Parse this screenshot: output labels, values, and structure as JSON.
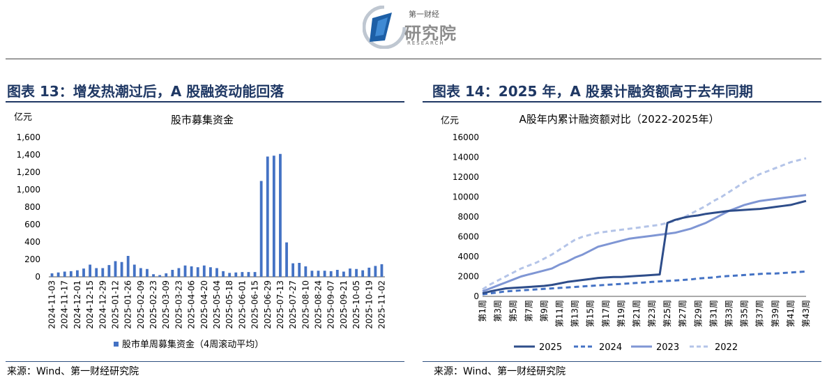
{
  "logo": {
    "line1": "第一财经",
    "line2": "研究院",
    "line3": "RESEARCH"
  },
  "left": {
    "figure_title": "图表 13：增发热潮过后，A 股融资动能回落",
    "source": "来源：Wind、第一财经研究院"
  },
  "right": {
    "figure_title": "图表 14：2025 年，A 股累计融资额高于去年同期",
    "source": "来源：Wind、第一财经研究院"
  },
  "chart_data": [
    {
      "type": "bar",
      "title": "股市募集资金",
      "unit_label": "亿元",
      "ylim": [
        0,
        1600
      ],
      "yticks": [
        "0",
        "200",
        "400",
        "600",
        "800",
        "1,000",
        "1,200",
        "1,400",
        "1,600"
      ],
      "ytick_values": [
        0,
        200,
        400,
        600,
        800,
        1000,
        1200,
        1400,
        1600
      ],
      "color": "#4472c4",
      "categories": [
        "2024-11-03",
        "2024-11-10",
        "2024-11-17",
        "2024-11-24",
        "2024-12-01",
        "2024-12-08",
        "2024-12-15",
        "2024-12-22",
        "2024-12-29",
        "2025-01-05",
        "2025-01-12",
        "2025-01-19",
        "2025-01-26",
        "2025-02-02",
        "2025-02-09",
        "2025-02-16",
        "2025-02-23",
        "2025-03-02",
        "2025-03-09",
        "2025-03-16",
        "2025-03-23",
        "2025-03-30",
        "2025-04-06",
        "2025-04-13",
        "2025-04-20",
        "2025-04-27",
        "2025-05-04",
        "2025-05-11",
        "2025-05-18",
        "2025-05-25",
        "2025-06-01",
        "2025-06-08",
        "2025-06-15",
        "2025-06-22",
        "2025-06-29",
        "2025-07-06",
        "2025-07-13",
        "2025-07-20",
        "2025-07-27",
        "2025-08-03",
        "2025-08-10",
        "2025-08-17",
        "2025-08-24",
        "2025-08-31",
        "2025-09-07",
        "2025-09-14",
        "2025-09-21",
        "2025-09-28",
        "2025-10-05",
        "2025-10-12",
        "2025-10-19",
        "2025-10-26",
        "2025-11-02"
      ],
      "xtick_labels": [
        "2024-11-03",
        "2024-11-17",
        "2024-12-01",
        "2024-12-15",
        "2024-12-29",
        "2025-01-12",
        "2025-01-26",
        "2025-02-09",
        "2025-02-23",
        "2025-03-09",
        "2025-03-23",
        "2025-04-06",
        "2025-04-20",
        "2025-05-04",
        "2025-05-18",
        "2025-06-01",
        "2025-06-15",
        "2025-06-29",
        "2025-07-13",
        "2025-07-27",
        "2025-08-10",
        "2025-08-24",
        "2025-09-07",
        "2025-09-21",
        "2025-10-05",
        "2025-10-19",
        "2025-11-02"
      ],
      "values": [
        40,
        50,
        60,
        65,
        75,
        95,
        140,
        100,
        100,
        135,
        180,
        170,
        240,
        140,
        100,
        90,
        30,
        20,
        40,
        80,
        100,
        130,
        120,
        110,
        130,
        110,
        100,
        65,
        45,
        50,
        55,
        55,
        55,
        1100,
        1380,
        1390,
        1410,
        395,
        155,
        160,
        120,
        70,
        70,
        70,
        65,
        80,
        60,
        95,
        90,
        75,
        105,
        125,
        145
      ],
      "legend": "股市单周募集资金（4周滚动平均）"
    },
    {
      "type": "line",
      "title": "A股年内累计融资额对比（2022-2025年）",
      "unit_label": "亿元",
      "ylim": [
        0,
        16000
      ],
      "yticks": [
        "0",
        "2000",
        "4000",
        "6000",
        "8000",
        "10000",
        "12000",
        "14000",
        "16000"
      ],
      "ytick_values": [
        0,
        2000,
        4000,
        6000,
        8000,
        10000,
        12000,
        14000,
        16000
      ],
      "xtick_labels": [
        "第1周",
        "第3周",
        "第5周",
        "第7周",
        "第9周",
        "第11周",
        "第13周",
        "第15周",
        "第17周",
        "第19周",
        "第21周",
        "第23周",
        "第25周",
        "第27周",
        "第29周",
        "第31周",
        "第33周",
        "第35周",
        "第37周",
        "第39周",
        "第41周",
        "第43周"
      ],
      "series": [
        {
          "name": "2025",
          "color": "#2e4d8a",
          "dash": "solid",
          "values": [
            300,
            500,
            650,
            800,
            850,
            900,
            950,
            1000,
            1050,
            1150,
            1300,
            1450,
            1550,
            1650,
            1750,
            1850,
            1900,
            1950,
            1950,
            2000,
            2050,
            2100,
            2150,
            2200,
            7400,
            7700,
            7900,
            8050,
            8150,
            8300,
            8400,
            8500,
            8600,
            8650,
            8700,
            8750,
            8800,
            8900,
            9000,
            9100,
            9200,
            9400,
            9600
          ]
        },
        {
          "name": "2024",
          "color": "#4472c4",
          "dash": "dash",
          "values": [
            200,
            300,
            400,
            500,
            550,
            600,
            650,
            700,
            750,
            800,
            850,
            900,
            950,
            1000,
            1050,
            1100,
            1150,
            1200,
            1250,
            1300,
            1350,
            1400,
            1450,
            1500,
            1550,
            1600,
            1650,
            1700,
            1800,
            1850,
            1900,
            2000,
            2050,
            2100,
            2150,
            2200,
            2250,
            2300,
            2300,
            2350,
            2400,
            2450,
            2500
          ]
        },
        {
          "name": "2023",
          "color": "#7f96d4",
          "dash": "solid",
          "values": [
            500,
            800,
            1100,
            1400,
            1700,
            2000,
            2200,
            2400,
            2600,
            2800,
            3200,
            3500,
            3900,
            4200,
            4600,
            5000,
            5200,
            5400,
            5600,
            5800,
            5900,
            6000,
            6100,
            6200,
            6300,
            6400,
            6600,
            6800,
            7100,
            7400,
            7800,
            8200,
            8600,
            8900,
            9200,
            9400,
            9600,
            9700,
            9800,
            9900,
            10000,
            10100,
            10200
          ]
        },
        {
          "name": "2022",
          "color": "#b4c4e8",
          "dash": "dash",
          "values": [
            700,
            1200,
            1600,
            2000,
            2400,
            2800,
            3100,
            3400,
            3800,
            4200,
            4700,
            5200,
            5700,
            6000,
            6200,
            6400,
            6500,
            6600,
            6700,
            6800,
            6900,
            7000,
            7100,
            7200,
            7400,
            7600,
            7900,
            8300,
            8700,
            9100,
            9600,
            10000,
            10500,
            11000,
            11500,
            11900,
            12300,
            12600,
            12900,
            13200,
            13500,
            13700,
            13900
          ]
        }
      ]
    }
  ]
}
